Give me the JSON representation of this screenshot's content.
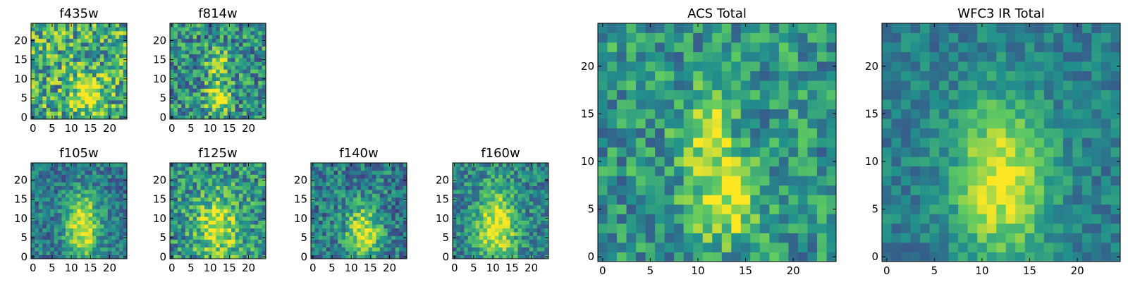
{
  "chart_data": [
    {
      "type": "heatmap",
      "title": "f435w",
      "xlim": [
        0,
        25
      ],
      "ylim": [
        0,
        25
      ],
      "xticks": [
        "0",
        "5",
        "10",
        "15",
        "20"
      ],
      "yticks": [
        "0",
        "5",
        "10",
        "15",
        "20"
      ],
      "peaks": [
        {
          "x": 14,
          "y": 6,
          "amp": 0.5,
          "sx": 2.5,
          "sy": 3
        }
      ],
      "base": 0.62,
      "noise": 0.34,
      "seed": 11
    },
    {
      "type": "heatmap",
      "title": "f814w",
      "xlim": [
        0,
        25
      ],
      "ylim": [
        0,
        25
      ],
      "xticks": [
        "0",
        "5",
        "10",
        "15",
        "20"
      ],
      "yticks": [
        "0",
        "5",
        "10",
        "15",
        "20"
      ],
      "peaks": [
        {
          "x": 12,
          "y": 5,
          "amp": 0.5,
          "sx": 2,
          "sy": 3
        },
        {
          "x": 12,
          "y": 14,
          "amp": 0.4,
          "sx": 2,
          "sy": 2.5
        }
      ],
      "base": 0.5,
      "noise": 0.3,
      "seed": 23
    },
    {
      "type": "heatmap",
      "title": "f105w",
      "xlim": [
        0,
        25
      ],
      "ylim": [
        0,
        25
      ],
      "xticks": [
        "0",
        "5",
        "10",
        "15",
        "20"
      ],
      "yticks": [
        "0",
        "5",
        "10",
        "15",
        "20"
      ],
      "peaks": [
        {
          "x": 13,
          "y": 8,
          "amp": 0.6,
          "sx": 3,
          "sy": 6
        }
      ],
      "base": 0.4,
      "noise": 0.2,
      "seed": 37
    },
    {
      "type": "heatmap",
      "title": "f125w",
      "xlim": [
        0,
        25
      ],
      "ylim": [
        0,
        25
      ],
      "xticks": [
        "0",
        "5",
        "10",
        "15",
        "20"
      ],
      "yticks": [
        "0",
        "5",
        "10",
        "15",
        "20"
      ],
      "peaks": [
        {
          "x": 12,
          "y": 8,
          "amp": 0.45,
          "sx": 4,
          "sy": 6
        }
      ],
      "base": 0.5,
      "noise": 0.28,
      "seed": 41
    },
    {
      "type": "heatmap",
      "title": "f140w",
      "xlim": [
        0,
        25
      ],
      "ylim": [
        0,
        25
      ],
      "xticks": [
        "0",
        "5",
        "10",
        "15",
        "20"
      ],
      "yticks": [
        "0",
        "5",
        "10",
        "15",
        "20"
      ],
      "peaks": [
        {
          "x": 13,
          "y": 6,
          "amp": 0.55,
          "sx": 3,
          "sy": 5
        }
      ],
      "base": 0.42,
      "noise": 0.24,
      "seed": 53
    },
    {
      "type": "heatmap",
      "title": "f160w",
      "xlim": [
        0,
        25
      ],
      "ylim": [
        0,
        25
      ],
      "xticks": [
        "0",
        "5",
        "10",
        "15",
        "20"
      ],
      "yticks": [
        "0",
        "5",
        "10",
        "15",
        "20"
      ],
      "peaks": [
        {
          "x": 11,
          "y": 8,
          "amp": 0.55,
          "sx": 3.5,
          "sy": 7
        }
      ],
      "base": 0.45,
      "noise": 0.22,
      "seed": 67
    },
    {
      "type": "heatmap",
      "title": "ACS Total",
      "xlim": [
        0,
        25
      ],
      "ylim": [
        0,
        25
      ],
      "xticks": [
        "0",
        "5",
        "10",
        "15",
        "20"
      ],
      "yticks": [
        "0",
        "5",
        "10",
        "15",
        "20"
      ],
      "peaks": [
        {
          "x": 13,
          "y": 6,
          "amp": 0.45,
          "sx": 2.5,
          "sy": 3
        },
        {
          "x": 11,
          "y": 13,
          "amp": 0.4,
          "sx": 1.8,
          "sy": 3
        }
      ],
      "base": 0.52,
      "noise": 0.24,
      "seed": 79
    },
    {
      "type": "heatmap",
      "title": "WFC3 IR Total",
      "xlim": [
        0,
        25
      ],
      "ylim": [
        0,
        25
      ],
      "xticks": [
        "0",
        "5",
        "10",
        "15",
        "20"
      ],
      "yticks": [
        "0",
        "5",
        "10",
        "15",
        "20"
      ],
      "peaks": [
        {
          "x": 12,
          "y": 8,
          "amp": 0.55,
          "sx": 3.5,
          "sy": 6
        }
      ],
      "base": 0.42,
      "noise": 0.14,
      "seed": 97
    }
  ],
  "colormap": [
    "#440154",
    "#3b528b",
    "#21918c",
    "#5ec962",
    "#fde725"
  ]
}
